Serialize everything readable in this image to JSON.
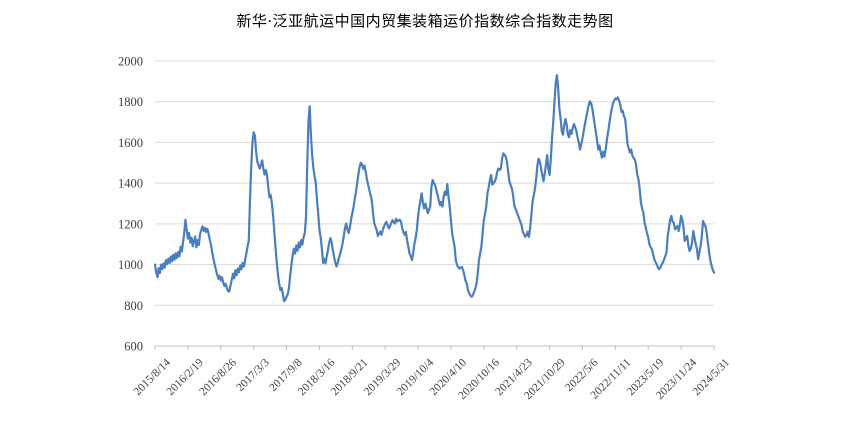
{
  "title": "新华·泛亚航运中国内贸集装箱运价指数综合指数走势图",
  "colors": {
    "line": "#4B7EBE",
    "gridline": "#D9D9D9",
    "axis": "#BFBFBF",
    "tick_label": "#404040",
    "title_text": "#000000",
    "background": "#FFFFFF"
  },
  "chart_data": {
    "type": "line",
    "title": "新华·泛亚航运中国内贸集装箱运价指数综合指数走势图",
    "xlabel": "",
    "ylabel": "",
    "ylim": [
      600,
      2000
    ],
    "y_ticks": [
      600,
      800,
      1000,
      1200,
      1400,
      1600,
      1800,
      2000
    ],
    "grid": "horizontal",
    "legend": "none",
    "x_unit": "weekly index readings; week 0 = 2015/8/14, week 459 = 2024/5/31",
    "x_tick_labels": [
      "2015/8/14",
      "2016/2/19",
      "2016/8/26",
      "2017/3/3",
      "2017/9/8",
      "2018/3/16",
      "2018/9/21",
      "2019/3/29",
      "2019/10/4",
      "2020/4/10",
      "2020/10/16",
      "2021/4/23",
      "2021/10/29",
      "2022/5/6",
      "2022/11/11",
      "2023/5/19",
      "2023/11/24",
      "2024/5/31"
    ],
    "x_tick_weeks": [
      0,
      27,
      54,
      81,
      108,
      135,
      162,
      189,
      216,
      243,
      270,
      297,
      324,
      351,
      378,
      405,
      432,
      459
    ],
    "series": [
      {
        "name": "综合指数",
        "start_week": 0,
        "values": [
          1000,
          962,
          938,
          982,
          958,
          1000,
          978,
          1005,
          985,
          1022,
          1002,
          1030,
          1008,
          1040,
          1016,
          1048,
          1024,
          1056,
          1032,
          1062,
          1040,
          1088,
          1064,
          1108,
          1155,
          1220,
          1172,
          1128,
          1156,
          1108,
          1132,
          1090,
          1115,
          1138,
          1085,
          1120,
          1096,
          1150,
          1170,
          1188,
          1165,
          1180,
          1160,
          1176,
          1150,
          1122,
          1095,
          1060,
          1028,
          1000,
          975,
          952,
          930,
          945,
          922,
          938,
          912,
          895,
          905,
          885,
          870,
          868,
          898,
          925,
          955,
          932,
          972,
          948,
          980,
          962,
          996,
          978,
          1008,
          990,
          1022,
          1056,
          1088,
          1120,
          1318,
          1480,
          1600,
          1650,
          1634,
          1556,
          1506,
          1488,
          1472,
          1490,
          1512,
          1470,
          1442,
          1464,
          1440,
          1380,
          1330,
          1342,
          1300,
          1240,
          1160,
          1080,
          1010,
          950,
          905,
          875,
          885,
          855,
          820,
          828,
          842,
          855,
          885,
          946,
          996,
          1046,
          1078,
          1054,
          1094,
          1068,
          1108,
          1084,
          1120,
          1098,
          1135,
          1155,
          1235,
          1490,
          1700,
          1778,
          1640,
          1540,
          1478,
          1435,
          1400,
          1318,
          1250,
          1172,
          1136,
          1078,
          1008,
          1028,
          1006,
          1040,
          1072,
          1105,
          1130,
          1110,
          1072,
          1040,
          1012,
          990,
          1008,
          1032,
          1052,
          1075,
          1102,
          1140,
          1180,
          1202,
          1172,
          1155,
          1182,
          1222,
          1252,
          1282,
          1322,
          1356,
          1400,
          1442,
          1480,
          1500,
          1492,
          1470,
          1486,
          1455,
          1420,
          1392,
          1366,
          1340,
          1316,
          1252,
          1204,
          1186,
          1170,
          1140,
          1152,
          1162,
          1146,
          1170,
          1186,
          1200,
          1210,
          1194,
          1178,
          1190,
          1204,
          1218,
          1210,
          1202,
          1225,
          1212,
          1216,
          1220,
          1210,
          1178,
          1160,
          1146,
          1160,
          1120,
          1088,
          1055,
          1040,
          1022,
          1055,
          1102,
          1130,
          1170,
          1235,
          1284,
          1316,
          1350,
          1302,
          1276,
          1300,
          1276,
          1252,
          1270,
          1286,
          1382,
          1415,
          1400,
          1390,
          1366,
          1342,
          1316,
          1292,
          1308,
          1285,
          1332,
          1358,
          1342,
          1395,
          1335,
          1285,
          1218,
          1152,
          1120,
          1088,
          1022,
          998,
          988,
          980,
          986,
          988,
          972,
          948,
          920,
          906,
          874,
          858,
          848,
          842,
          850,
          866,
          882,
          906,
          955,
          1022,
          1055,
          1088,
          1152,
          1218,
          1250,
          1285,
          1350,
          1380,
          1415,
          1440,
          1392,
          1400,
          1408,
          1424,
          1456,
          1472,
          1465,
          1472,
          1520,
          1546,
          1540,
          1530,
          1505,
          1456,
          1408,
          1390,
          1374,
          1342,
          1292,
          1275,
          1258,
          1243,
          1226,
          1210,
          1193,
          1161,
          1150,
          1136,
          1144,
          1161,
          1136,
          1177,
          1243,
          1308,
          1340,
          1374,
          1423,
          1489,
          1520,
          1505,
          1472,
          1440,
          1410,
          1445,
          1490,
          1538,
          1470,
          1440,
          1520,
          1620,
          1700,
          1800,
          1890,
          1930,
          1870,
          1770,
          1718,
          1655,
          1638,
          1685,
          1715,
          1690,
          1640,
          1625,
          1660,
          1642,
          1670,
          1690,
          1675,
          1655,
          1625,
          1600,
          1565,
          1590,
          1620,
          1655,
          1690,
          1720,
          1750,
          1780,
          1802,
          1795,
          1770,
          1730,
          1690,
          1650,
          1610,
          1565,
          1585,
          1550,
          1525,
          1555,
          1530,
          1565,
          1610,
          1650,
          1690,
          1730,
          1765,
          1790,
          1806,
          1815,
          1812,
          1821,
          1806,
          1788,
          1750,
          1756,
          1730,
          1715,
          1660,
          1592,
          1570,
          1550,
          1566,
          1534,
          1524,
          1516,
          1490,
          1440,
          1419,
          1370,
          1304,
          1275,
          1255,
          1206,
          1180,
          1155,
          1132,
          1099,
          1085,
          1075,
          1050,
          1026,
          1012,
          1001,
          985,
          977,
          986,
          1000,
          1010,
          1025,
          1042,
          1060,
          1140,
          1180,
          1222,
          1239,
          1210,
          1205,
          1173,
          1180,
          1189,
          1165,
          1198,
          1239,
          1220,
          1180,
          1116,
          1130,
          1140,
          1091,
          1067,
          1080,
          1108,
          1165,
          1132,
          1100,
          1075,
          1026,
          1060,
          1091,
          1140,
          1214,
          1200,
          1189,
          1157,
          1108,
          1059,
          1020,
          993,
          975,
          960
        ]
      }
    ]
  }
}
